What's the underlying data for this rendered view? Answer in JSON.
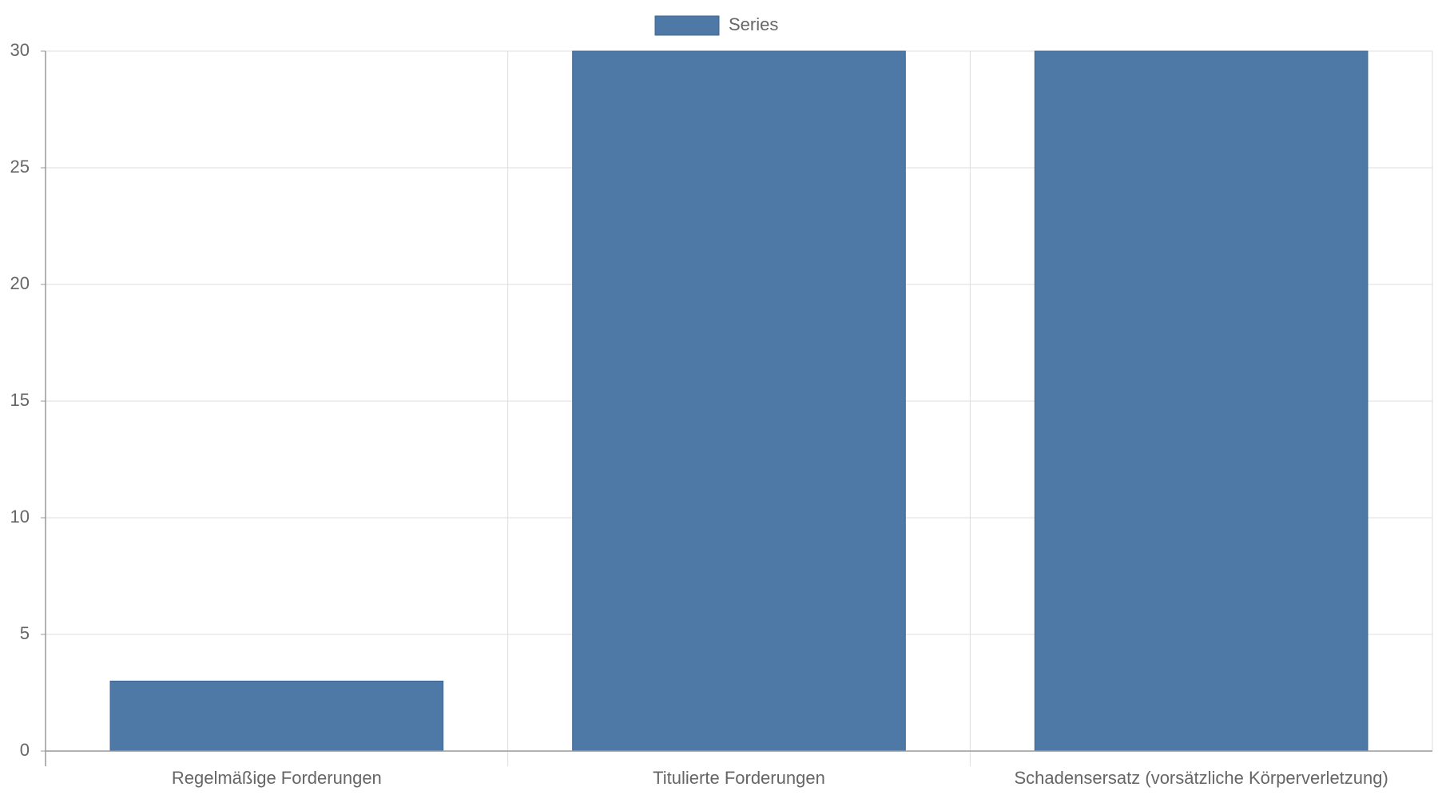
{
  "chart_data": {
    "type": "bar",
    "categories": [
      "Regelmäßige Forderungen",
      "Titulierte Forderungen",
      "Schadensersatz (vorsätzliche Körperverletzung)"
    ],
    "series": [
      {
        "name": "Series",
        "values": [
          3,
          30,
          30
        ]
      }
    ],
    "ylim": [
      0,
      30
    ],
    "yticks": [
      0,
      5,
      10,
      15,
      20,
      25,
      30
    ],
    "grid": true,
    "legend_position": "top-center",
    "colors": {
      "bar": "#4e79a7",
      "bar_stroke": "#3e6590",
      "grid": "#dddddd",
      "axis": "#999999",
      "text": "#666666"
    }
  }
}
